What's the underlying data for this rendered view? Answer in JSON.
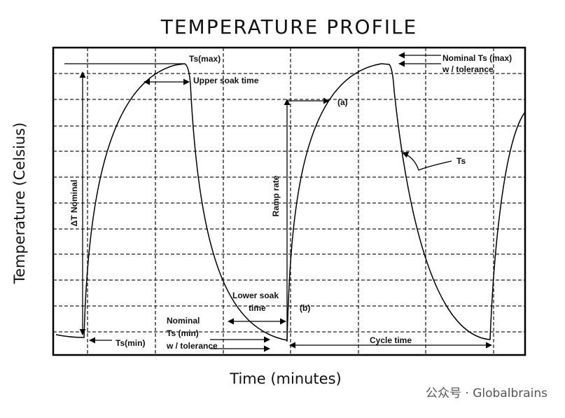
{
  "header": {
    "title": "TEMPERATURE PROFILE"
  },
  "axes": {
    "y_label": "Temperature (Celsius)",
    "x_label": "Time (minutes)"
  },
  "annotations": {
    "ts_max": "Ts(max)",
    "upper_soak": "Upper soak time",
    "delta_t": "ΔT Nominal",
    "ts_min": "Ts(min)",
    "nominal_min": [
      "Nominal",
      "Ts (min)",
      "w / tolerance"
    ],
    "lower_soak": [
      "Lower soak",
      "time"
    ],
    "a": "(a)",
    "b": "(b)",
    "ramp_rate": "Ramp rate",
    "ts": "Ts",
    "nominal_max": [
      "Nominal Ts (max)",
      "w / tolerance"
    ],
    "cycle_time": "Cycle time"
  },
  "watermark": "公众号 · Globalbrains"
}
